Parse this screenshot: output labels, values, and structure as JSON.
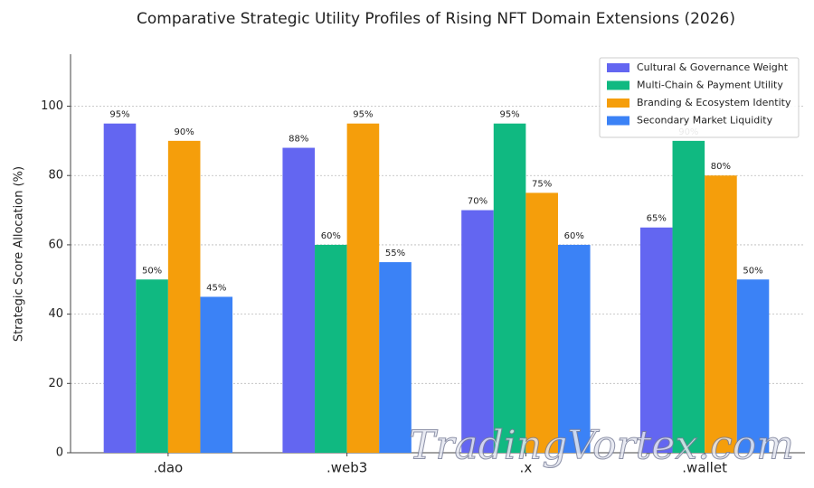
{
  "chart_data": {
    "type": "bar",
    "title": "Comparative Strategic Utility Profiles of Rising NFT Domain Extensions (2026)",
    "y_label": "Strategic Score Allocation (%)",
    "categories": [
      ".dao",
      ".web3",
      ".x",
      ".wallet"
    ],
    "series": [
      {
        "name": "Cultural & Governance Weight",
        "color": "#6366f1",
        "values": [
          95,
          88,
          70,
          65
        ],
        "value_labels": [
          "95%",
          "88%",
          "70%",
          "65%"
        ]
      },
      {
        "name": "Multi-Chain & Payment Utility",
        "color": "#10b981",
        "values": [
          50,
          60,
          95,
          90
        ],
        "value_labels": [
          "50%",
          "60%",
          "95%",
          "90%"
        ]
      },
      {
        "name": "Branding & Ecosystem Identity",
        "color": "#f59e0b",
        "values": [
          90,
          95,
          75,
          80
        ],
        "value_labels": [
          "90%",
          "95%",
          "75%",
          "80%"
        ]
      },
      {
        "name": "Secondary Market Liquidity",
        "color": "#3b82f6",
        "values": [
          45,
          55,
          60,
          50
        ],
        "value_labels": [
          "45%",
          "55%",
          "60%",
          "50%"
        ]
      }
    ],
    "ylim": [
      0,
      115
    ],
    "yticks": [
      0,
      20,
      40,
      60,
      80,
      100
    ],
    "grid": true,
    "legend": "upper right",
    "watermark": "TradingVortex.com"
  }
}
